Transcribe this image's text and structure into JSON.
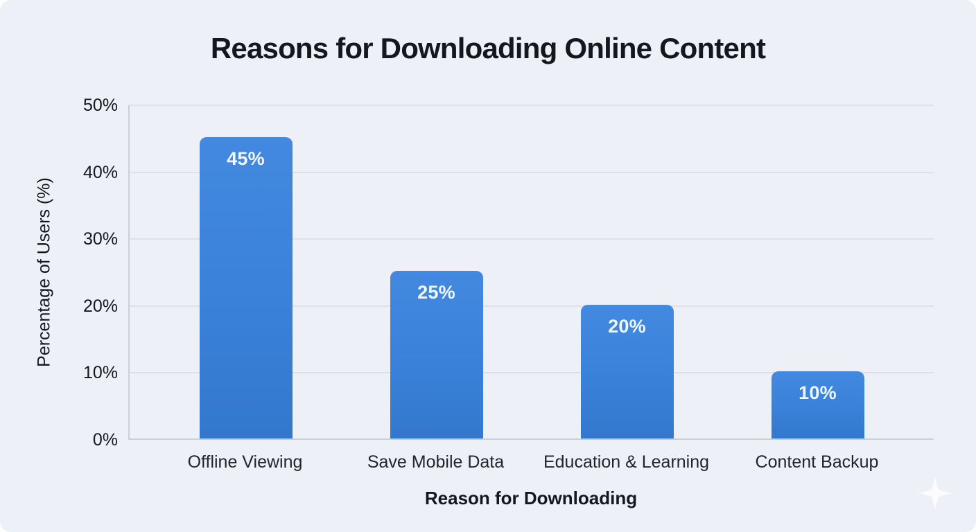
{
  "theme": {
    "background": "#edf1f7",
    "bar_color": "#3a81da",
    "grid_color": "#dce1e8",
    "axis_color": "#c9cfd8",
    "text_color": "#14171c",
    "value_label_color": "#f0f7ff"
  },
  "chart_data": {
    "type": "bar",
    "title": "Reasons for Downloading Online Content",
    "xlabel": "Reason for Downloading",
    "ylabel": "Percentage of Users (%)",
    "categories": [
      "Offline Viewing",
      "Save Mobile Data",
      "Education & Learning",
      "Content Backup"
    ],
    "values": [
      45,
      25,
      20,
      10
    ],
    "value_labels": [
      "45%",
      "25%",
      "20%",
      "10%"
    ],
    "y_ticks": [
      {
        "value": 0,
        "label": "0%"
      },
      {
        "value": 10,
        "label": "10%"
      },
      {
        "value": 20,
        "label": "20%"
      },
      {
        "value": 30,
        "label": "30%"
      },
      {
        "value": 40,
        "label": "40%"
      },
      {
        "value": 50,
        "label": "50%"
      }
    ],
    "ylim": [
      0,
      50
    ],
    "grid": true,
    "legend": "none"
  },
  "decorations": {
    "sparkle_icon": "four-point-star-watermark"
  }
}
